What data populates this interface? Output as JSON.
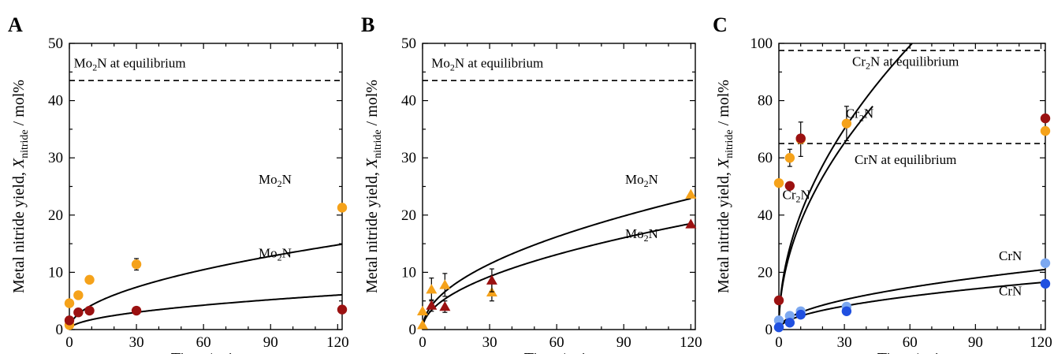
{
  "colors": {
    "orange": "#f5a21a",
    "darkred": "#9b1111",
    "lightblue": "#7ca8f0",
    "blue": "#2050e0"
  },
  "chart_data": [
    {
      "panel": "A",
      "type": "scatter",
      "xlabel": "Time / min",
      "ylabel_parts": [
        "Metal nitride yield, ",
        "X",
        "nitride",
        " / mol%"
      ],
      "xlim": [
        0,
        122
      ],
      "ylim": [
        0,
        50
      ],
      "xticks": [
        0,
        30,
        60,
        90,
        120
      ],
      "yticks": [
        0,
        10,
        20,
        30,
        40,
        50
      ],
      "series": [
        {
          "color": "orange",
          "marker": "circle",
          "points": [
            [
              0,
              0.8,
              null
            ],
            [
              0,
              4.6,
              null
            ],
            [
              4,
              6.0,
              null
            ],
            [
              9,
              8.7,
              null
            ],
            [
              30,
              11.4,
              1.0
            ],
            [
              122,
              21.3,
              null
            ]
          ]
        },
        {
          "color": "darkred",
          "marker": "circle",
          "points": [
            [
              0,
              1.6,
              null
            ],
            [
              4,
              3.0,
              null
            ],
            [
              9,
              3.3,
              null
            ],
            [
              30,
              3.3,
              null
            ],
            [
              122,
              3.5,
              null
            ]
          ]
        }
      ],
      "curves": [
        {
          "k": 1.35,
          "n": 0.5,
          "from": 0,
          "to": 122
        },
        {
          "k": 0.55,
          "n": 0.5,
          "from": 0,
          "to": 122
        }
      ],
      "hlines": [
        43.5
      ],
      "labels": [
        {
          "base": "Mo",
          "sub": "2",
          "rest": "N at equilibrium",
          "x": 27,
          "y": 45.8
        },
        {
          "base": "Mo",
          "sub": "2",
          "rest": "N",
          "x": 92,
          "y": 25.5
        },
        {
          "base": "Mo",
          "sub": "2",
          "rest": "N",
          "x": 92,
          "y": 12.6
        }
      ]
    },
    {
      "panel": "B",
      "type": "scatter",
      "xlabel": "Time / min",
      "ylabel_parts": [
        "Metal nitride yield, ",
        "X",
        "nitride",
        " / mol%"
      ],
      "xlim": [
        0,
        122
      ],
      "ylim": [
        0,
        50
      ],
      "xticks": [
        0,
        30,
        60,
        90,
        120
      ],
      "yticks": [
        0,
        10,
        20,
        30,
        40,
        50
      ],
      "series": [
        {
          "color": "orange",
          "marker": "triangle",
          "points": [
            [
              0,
              0.8,
              null
            ],
            [
              0,
              3.2,
              null
            ],
            [
              4,
              7.0,
              2.0
            ],
            [
              10,
              7.8,
              2.0
            ],
            [
              31,
              6.5,
              1.5
            ],
            [
              120,
              23.6,
              null
            ]
          ]
        },
        {
          "color": "darkred",
          "marker": "triangle",
          "points": [
            [
              4,
              4.2,
              1.0
            ],
            [
              10,
              4.0,
              1.0
            ],
            [
              31,
              8.6,
              2.0
            ],
            [
              120,
              18.4,
              null
            ]
          ]
        }
      ],
      "curves": [
        {
          "k": 2.09,
          "n": 0.5,
          "from": 0,
          "to": 120
        },
        {
          "k": 1.69,
          "n": 0.5,
          "from": 0,
          "to": 120
        }
      ],
      "hlines": [
        43.5
      ],
      "labels": [
        {
          "base": "Mo",
          "sub": "2",
          "rest": "N at equilibrium",
          "x": 29,
          "y": 45.8
        },
        {
          "base": "Mo",
          "sub": "2",
          "rest": "N",
          "x": 98,
          "y": 25.5
        },
        {
          "base": "Mo",
          "sub": "2",
          "rest": "N",
          "x": 98,
          "y": 16.0
        }
      ]
    },
    {
      "panel": "C",
      "type": "scatter",
      "xlabel": "Time / min",
      "ylabel_parts": [
        "Metal nitride yield, ",
        "X",
        "nitride",
        " / mol%"
      ],
      "xlim": [
        0,
        122
      ],
      "ylim": [
        0,
        100
      ],
      "xticks": [
        0,
        30,
        60,
        90,
        120
      ],
      "yticks": [
        0,
        20,
        40,
        60,
        80,
        100
      ],
      "series": [
        {
          "color": "orange",
          "marker": "circle",
          "points": [
            [
              0,
              51.2,
              null
            ],
            [
              5,
              60.0,
              3.0
            ],
            [
              10,
              66.5,
              6.0
            ],
            [
              31,
              72.0,
              6.0
            ],
            [
              122,
              69.4,
              null
            ]
          ]
        },
        {
          "color": "darkred",
          "marker": "circle",
          "points": [
            [
              0,
              10.2,
              null
            ],
            [
              5,
              50.2,
              null
            ],
            [
              10,
              66.8,
              null
            ],
            [
              122,
              73.8,
              null
            ]
          ]
        },
        {
          "color": "lightblue",
          "marker": "circle",
          "points": [
            [
              0,
              0.8,
              null
            ],
            [
              0,
              3.2,
              null
            ],
            [
              5,
              4.8,
              null
            ],
            [
              10,
              6.4,
              null
            ],
            [
              31,
              8.0,
              null
            ],
            [
              122,
              23.2,
              null
            ]
          ]
        },
        {
          "color": "blue",
          "marker": "circle",
          "points": [
            [
              0,
              0.8,
              null
            ],
            [
              5,
              2.4,
              null
            ],
            [
              10,
              5.2,
              null
            ],
            [
              31,
              6.4,
              null
            ],
            [
              122,
              16.0,
              null
            ]
          ]
        }
      ],
      "curves": [
        {
          "k": 12.8,
          "n": 0.5,
          "from": 0,
          "to": 61
        },
        {
          "k": 11.9,
          "n": 0.5,
          "from": 0,
          "to": 43
        },
        {
          "k": 1.9,
          "n": 0.5,
          "from": 0,
          "to": 122
        },
        {
          "k": 1.5,
          "n": 0.5,
          "from": 0,
          "to": 122
        }
      ],
      "hlines": [
        97.5,
        65.0
      ],
      "labels": [
        {
          "base": "Cr",
          "sub": "2",
          "rest": "N at equilibrium",
          "x": 58,
          "y": 92.2
        },
        {
          "base": "Cr",
          "sub": "2",
          "rest": "N",
          "x": 37,
          "y": 74.0
        },
        {
          "base": "CrN at equilibrium",
          "sub": "",
          "rest": "",
          "x": 58,
          "y": 57.8
        },
        {
          "base": "Cr",
          "sub": "2",
          "rest": "N",
          "x": 8,
          "y": 45.6
        },
        {
          "base": "CrN",
          "sub": "",
          "rest": "",
          "x": 106,
          "y": 24.3
        },
        {
          "base": "CrN",
          "sub": "",
          "rest": "",
          "x": 106,
          "y": 12.0
        }
      ]
    }
  ]
}
